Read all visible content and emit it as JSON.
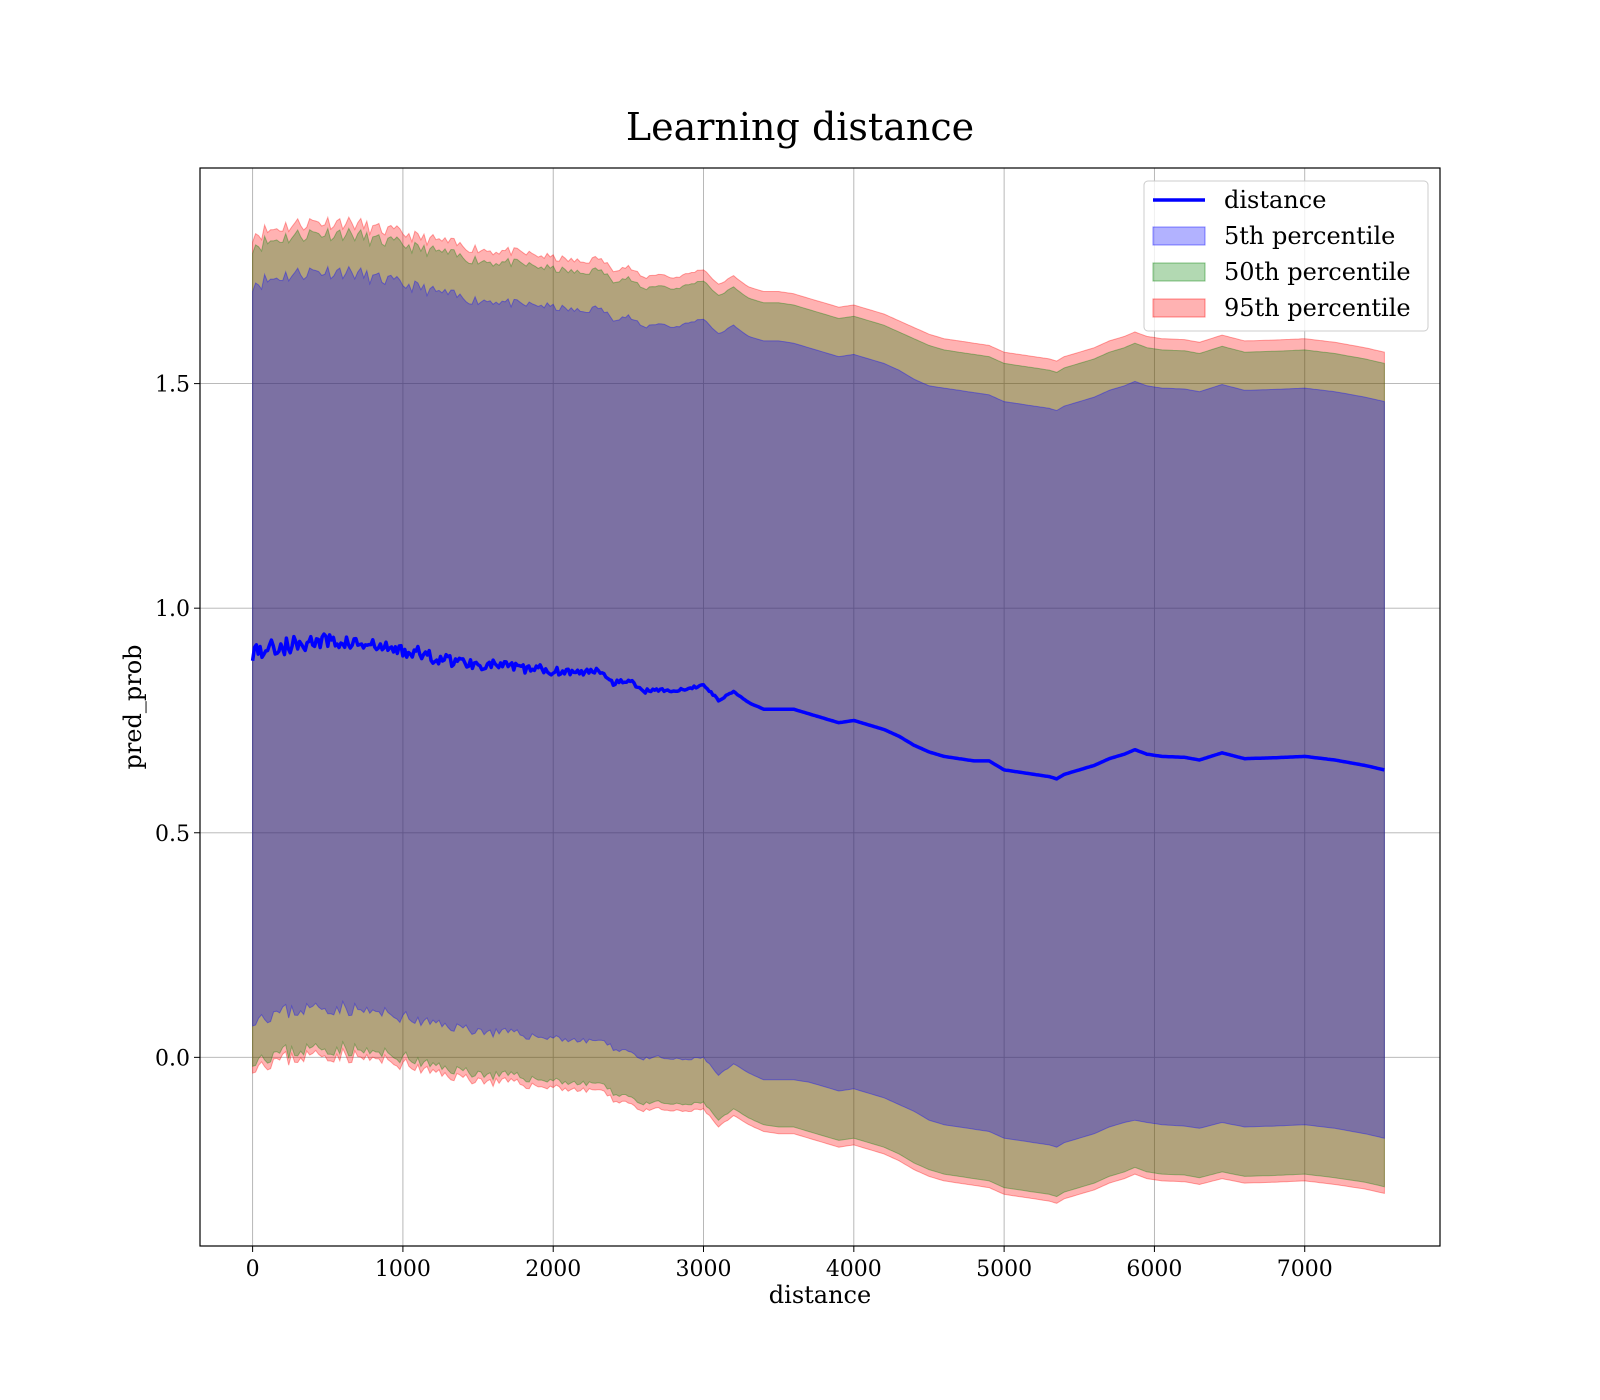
{
  "chart_data": {
    "type": "area",
    "title": "Learning distance",
    "xlabel": "distance",
    "ylabel": "pred_prob",
    "xlim": [
      -350,
      7900
    ],
    "ylim": [
      -0.42,
      1.98
    ],
    "xticks": [
      0,
      1000,
      2000,
      3000,
      4000,
      5000,
      6000,
      7000
    ],
    "yticks": [
      0.0,
      0.5,
      1.0,
      1.5
    ],
    "xtick_labels": [
      "0",
      "1000",
      "2000",
      "3000",
      "4000",
      "5000",
      "6000",
      "7000"
    ],
    "ytick_labels": [
      "0.0",
      "0.5",
      "1.0",
      "1.5"
    ],
    "grid": true,
    "legend_position": "top-right",
    "legend": [
      {
        "label": "distance",
        "kind": "line",
        "color": "#0000ff"
      },
      {
        "label": "5th percentile",
        "kind": "patch",
        "color": "#0000ff",
        "alpha": 0.3
      },
      {
        "label": "50th percentile",
        "kind": "patch",
        "color": "#008000",
        "alpha": 0.3
      },
      {
        "label": "95th percentile",
        "kind": "patch",
        "color": "#ff0000",
        "alpha": 0.3
      }
    ],
    "x": [
      0,
      100,
      200,
      300,
      400,
      500,
      600,
      700,
      800,
      900,
      1000,
      1100,
      1200,
      1300,
      1400,
      1500,
      1600,
      1700,
      1800,
      1900,
      2000,
      2100,
      2200,
      2300,
      2400,
      2500,
      2600,
      2700,
      2800,
      2900,
      3000,
      3100,
      3200,
      3300,
      3400,
      3500,
      3600,
      3700,
      3800,
      3900,
      4000,
      4100,
      4200,
      4300,
      4400,
      4500,
      4600,
      4700,
      4800,
      4900,
      5000,
      5100,
      5200,
      5300,
      5350,
      5400,
      5500,
      5600,
      5700,
      5800,
      5870,
      5950,
      6050,
      6200,
      6300,
      6450,
      6600,
      6800,
      7000,
      7200,
      7400,
      7530
    ],
    "series": [
      {
        "name": "distance",
        "kind": "line",
        "color": "#0000ff",
        "values": [
          0.905,
          0.91,
          0.915,
          0.92,
          0.925,
          0.925,
          0.925,
          0.92,
          0.915,
          0.91,
          0.905,
          0.9,
          0.89,
          0.885,
          0.88,
          0.875,
          0.875,
          0.87,
          0.865,
          0.865,
          0.86,
          0.86,
          0.855,
          0.865,
          0.835,
          0.84,
          0.815,
          0.82,
          0.815,
          0.82,
          0.83,
          0.795,
          0.815,
          0.79,
          0.775,
          0.775,
          0.775,
          0.765,
          0.755,
          0.745,
          0.75,
          0.74,
          0.73,
          0.715,
          0.695,
          0.68,
          0.67,
          0.665,
          0.66,
          0.66,
          0.64,
          0.635,
          0.63,
          0.625,
          0.62,
          0.63,
          0.64,
          0.65,
          0.665,
          0.675,
          0.685,
          0.675,
          0.67,
          0.668,
          0.662,
          0.678,
          0.665,
          0.667,
          0.67,
          0.662,
          0.65,
          0.64
        ]
      },
      {
        "name": "5th percentile",
        "kind": "band",
        "color": "#0000ff",
        "alpha": 0.3,
        "lower": [
          0.09,
          0.095,
          0.1,
          0.105,
          0.11,
          0.11,
          0.11,
          0.105,
          0.1,
          0.095,
          0.09,
          0.08,
          0.075,
          0.07,
          0.065,
          0.06,
          0.055,
          0.055,
          0.05,
          0.045,
          0.045,
          0.04,
          0.035,
          0.04,
          0.02,
          0.015,
          -0.005,
          0.0,
          -0.005,
          -0.005,
          0.0,
          -0.04,
          -0.015,
          -0.035,
          -0.05,
          -0.05,
          -0.05,
          -0.055,
          -0.065,
          -0.075,
          -0.07,
          -0.08,
          -0.09,
          -0.105,
          -0.12,
          -0.14,
          -0.15,
          -0.155,
          -0.16,
          -0.165,
          -0.18,
          -0.185,
          -0.19,
          -0.195,
          -0.2,
          -0.19,
          -0.18,
          -0.17,
          -0.155,
          -0.145,
          -0.14,
          -0.145,
          -0.15,
          -0.153,
          -0.158,
          -0.145,
          -0.155,
          -0.153,
          -0.15,
          -0.158,
          -0.17,
          -0.18
        ],
        "upper": [
          1.725,
          1.73,
          1.74,
          1.745,
          1.75,
          1.75,
          1.75,
          1.745,
          1.735,
          1.73,
          1.72,
          1.715,
          1.705,
          1.7,
          1.69,
          1.685,
          1.685,
          1.68,
          1.675,
          1.675,
          1.67,
          1.665,
          1.66,
          1.67,
          1.645,
          1.65,
          1.625,
          1.635,
          1.625,
          1.635,
          1.645,
          1.61,
          1.63,
          1.605,
          1.595,
          1.595,
          1.59,
          1.58,
          1.57,
          1.56,
          1.565,
          1.555,
          1.545,
          1.53,
          1.51,
          1.495,
          1.49,
          1.485,
          1.48,
          1.475,
          1.46,
          1.455,
          1.45,
          1.445,
          1.44,
          1.45,
          1.46,
          1.47,
          1.485,
          1.495,
          1.505,
          1.495,
          1.49,
          1.488,
          1.482,
          1.498,
          1.485,
          1.487,
          1.49,
          1.482,
          1.47,
          1.46
        ]
      },
      {
        "name": "50th percentile",
        "kind": "band",
        "color": "#008000",
        "alpha": 0.3,
        "lower": [
          0.0,
          0.005,
          0.01,
          0.015,
          0.02,
          0.02,
          0.02,
          0.015,
          0.01,
          0.005,
          0.0,
          -0.01,
          -0.02,
          -0.025,
          -0.03,
          -0.035,
          -0.04,
          -0.04,
          -0.045,
          -0.05,
          -0.05,
          -0.055,
          -0.06,
          -0.055,
          -0.08,
          -0.085,
          -0.105,
          -0.1,
          -0.105,
          -0.105,
          -0.1,
          -0.14,
          -0.115,
          -0.135,
          -0.15,
          -0.155,
          -0.155,
          -0.165,
          -0.175,
          -0.185,
          -0.18,
          -0.19,
          -0.2,
          -0.215,
          -0.235,
          -0.25,
          -0.26,
          -0.265,
          -0.27,
          -0.275,
          -0.29,
          -0.295,
          -0.3,
          -0.305,
          -0.31,
          -0.3,
          -0.29,
          -0.28,
          -0.265,
          -0.255,
          -0.245,
          -0.255,
          -0.26,
          -0.262,
          -0.268,
          -0.255,
          -0.265,
          -0.263,
          -0.26,
          -0.268,
          -0.278,
          -0.288
        ],
        "upper": [
          1.81,
          1.815,
          1.825,
          1.83,
          1.835,
          1.835,
          1.835,
          1.83,
          1.82,
          1.815,
          1.81,
          1.8,
          1.795,
          1.79,
          1.78,
          1.775,
          1.77,
          1.77,
          1.765,
          1.76,
          1.755,
          1.75,
          1.745,
          1.755,
          1.73,
          1.735,
          1.71,
          1.72,
          1.71,
          1.72,
          1.73,
          1.695,
          1.715,
          1.69,
          1.68,
          1.68,
          1.675,
          1.665,
          1.655,
          1.645,
          1.65,
          1.64,
          1.63,
          1.615,
          1.6,
          1.585,
          1.575,
          1.57,
          1.565,
          1.56,
          1.545,
          1.54,
          1.535,
          1.53,
          1.525,
          1.535,
          1.545,
          1.555,
          1.57,
          1.58,
          1.59,
          1.58,
          1.575,
          1.573,
          1.567,
          1.583,
          1.57,
          1.572,
          1.575,
          1.567,
          1.555,
          1.545
        ]
      },
      {
        "name": "95th percentile",
        "kind": "band",
        "color": "#ff0000",
        "alpha": 0.3,
        "lower": [
          -0.015,
          -0.01,
          -0.005,
          0.0,
          0.005,
          0.005,
          0.005,
          0.0,
          -0.005,
          -0.01,
          -0.015,
          -0.025,
          -0.035,
          -0.04,
          -0.045,
          -0.05,
          -0.055,
          -0.055,
          -0.06,
          -0.065,
          -0.065,
          -0.07,
          -0.075,
          -0.07,
          -0.095,
          -0.1,
          -0.12,
          -0.115,
          -0.12,
          -0.12,
          -0.115,
          -0.155,
          -0.13,
          -0.15,
          -0.165,
          -0.17,
          -0.17,
          -0.18,
          -0.19,
          -0.2,
          -0.195,
          -0.205,
          -0.215,
          -0.23,
          -0.25,
          -0.265,
          -0.275,
          -0.28,
          -0.285,
          -0.29,
          -0.305,
          -0.31,
          -0.315,
          -0.32,
          -0.325,
          -0.315,
          -0.305,
          -0.295,
          -0.28,
          -0.27,
          -0.26,
          -0.27,
          -0.275,
          -0.277,
          -0.283,
          -0.27,
          -0.28,
          -0.278,
          -0.275,
          -0.283,
          -0.293,
          -0.303
        ],
        "upper": [
          1.835,
          1.84,
          1.85,
          1.855,
          1.86,
          1.86,
          1.86,
          1.855,
          1.845,
          1.84,
          1.835,
          1.825,
          1.82,
          1.815,
          1.805,
          1.8,
          1.795,
          1.795,
          1.79,
          1.785,
          1.78,
          1.775,
          1.77,
          1.78,
          1.755,
          1.76,
          1.735,
          1.745,
          1.735,
          1.745,
          1.755,
          1.72,
          1.74,
          1.715,
          1.705,
          1.705,
          1.7,
          1.69,
          1.68,
          1.67,
          1.675,
          1.665,
          1.655,
          1.64,
          1.625,
          1.61,
          1.6,
          1.595,
          1.59,
          1.585,
          1.57,
          1.565,
          1.56,
          1.555,
          1.55,
          1.56,
          1.57,
          1.58,
          1.595,
          1.605,
          1.615,
          1.605,
          1.6,
          1.598,
          1.592,
          1.608,
          1.595,
          1.597,
          1.6,
          1.592,
          1.58,
          1.57
        ]
      }
    ]
  }
}
